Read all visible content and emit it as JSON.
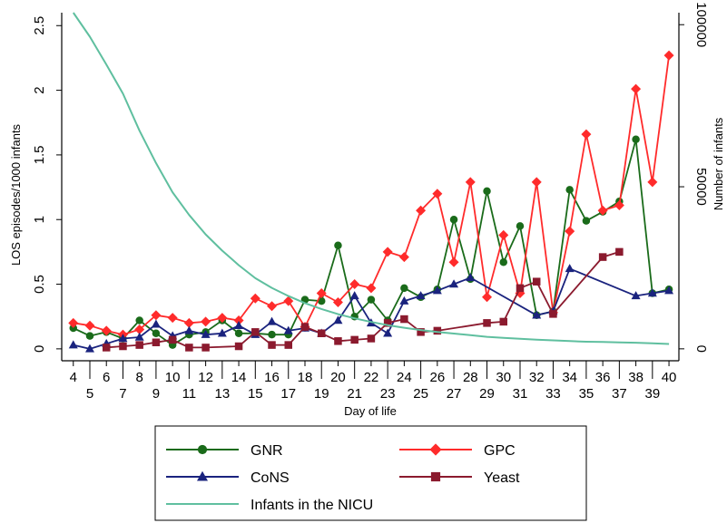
{
  "chart_data": {
    "type": "line",
    "xlabel": "Day of life",
    "ylabel": "LOS episodes/1000 infants",
    "y2label": "Number of infants",
    "x_ticks": [
      4,
      5,
      6,
      7,
      8,
      9,
      10,
      11,
      12,
      13,
      14,
      15,
      16,
      17,
      18,
      19,
      20,
      21,
      22,
      23,
      24,
      25,
      26,
      27,
      28,
      29,
      30,
      31,
      32,
      33,
      34,
      35,
      36,
      37,
      38,
      39,
      40
    ],
    "y_ticks": [
      "0",
      "0.5",
      "1",
      "1.5",
      "2",
      "2.5"
    ],
    "y_tick_values": [
      0,
      0.5,
      1,
      1.5,
      2,
      2.5
    ],
    "y2_ticks": [
      "0",
      "50000",
      "100000"
    ],
    "y2_tick_values": [
      0,
      50000,
      100000
    ],
    "xlim": [
      3.3,
      40.6
    ],
    "ylim": [
      -0.05,
      2.6
    ],
    "y2lim": [
      -2000,
      103700
    ],
    "legend_position": "bottom",
    "series": [
      {
        "name": "GNR",
        "color": "#1a6b1a",
        "marker": "circle",
        "axis": "left",
        "x": [
          4,
          5,
          6,
          7,
          8,
          9,
          10,
          11,
          12,
          13,
          14,
          15,
          16,
          17,
          18,
          19,
          20,
          21,
          22,
          23,
          24,
          25,
          26,
          27,
          28,
          29,
          30,
          31,
          32,
          33,
          34,
          35,
          36,
          37,
          38,
          39,
          40
        ],
        "values": [
          0.16,
          0.1,
          0.13,
          0.08,
          0.22,
          0.12,
          0.03,
          0.11,
          0.13,
          0.22,
          0.12,
          0.12,
          0.11,
          0.11,
          0.38,
          0.37,
          0.8,
          0.25,
          0.38,
          0.22,
          0.47,
          0.4,
          0.46,
          1.0,
          0.54,
          1.22,
          0.67,
          0.95,
          0.26,
          0.29,
          1.23,
          0.99,
          1.06,
          1.14,
          1.62,
          0.43,
          0.46
        ]
      },
      {
        "name": "GPC",
        "color": "#ff2b2b",
        "marker": "diamond",
        "axis": "left",
        "x": [
          4,
          5,
          6,
          7,
          8,
          9,
          10,
          11,
          12,
          13,
          14,
          15,
          16,
          17,
          18,
          19,
          20,
          21,
          22,
          23,
          24,
          25,
          26,
          27,
          28,
          29,
          30,
          31,
          32,
          33,
          34,
          35,
          36,
          37,
          38,
          39,
          40
        ],
        "values": [
          0.2,
          0.18,
          0.14,
          0.11,
          0.15,
          0.26,
          0.24,
          0.2,
          0.21,
          0.24,
          0.22,
          0.39,
          0.33,
          0.37,
          0.17,
          0.43,
          0.36,
          0.5,
          0.47,
          0.75,
          0.71,
          1.07,
          1.2,
          0.67,
          1.29,
          0.4,
          0.88,
          0.43,
          1.29,
          0.28,
          0.91,
          1.66,
          1.07,
          1.11,
          2.01,
          1.29,
          2.27
        ]
      },
      {
        "name": "CoNS",
        "color": "#1a237e",
        "marker": "triangle",
        "axis": "left",
        "x": [
          4,
          5,
          6,
          7,
          8,
          9,
          10,
          11,
          12,
          13,
          14,
          15,
          16,
          17,
          18,
          19,
          20,
          21,
          22,
          23,
          24,
          25,
          26,
          27,
          28,
          32,
          33,
          34,
          38,
          39,
          40
        ],
        "values": [
          0.03,
          0.0,
          0.04,
          0.08,
          0.09,
          0.19,
          0.1,
          0.14,
          0.11,
          0.12,
          0.18,
          0.11,
          0.21,
          0.14,
          0.16,
          0.12,
          0.22,
          0.41,
          0.2,
          0.12,
          0.37,
          0.41,
          0.45,
          0.5,
          0.55,
          0.26,
          0.29,
          0.62,
          0.41,
          0.43,
          0.45
        ]
      },
      {
        "name": "Yeast",
        "color": "#8b1a2e",
        "marker": "square",
        "axis": "left",
        "x": [
          6,
          7,
          8,
          9,
          10,
          11,
          12,
          14,
          15,
          16,
          17,
          18,
          19,
          20,
          21,
          22,
          23,
          24,
          25,
          26,
          29,
          30,
          31,
          32,
          33,
          36,
          37
        ],
        "values": [
          0.01,
          0.02,
          0.03,
          0.05,
          0.07,
          0.01,
          0.01,
          0.02,
          0.13,
          0.03,
          0.03,
          0.17,
          0.12,
          0.06,
          0.07,
          0.08,
          0.2,
          0.23,
          0.13,
          0.14,
          0.2,
          0.21,
          0.47,
          0.52,
          0.27,
          0.71,
          0.75
        ]
      },
      {
        "name": "Infants in the NICU",
        "color": "#5fbf9f",
        "marker": "none",
        "axis": "right",
        "x": [
          4,
          5,
          6,
          7,
          8,
          9,
          10,
          11,
          12,
          13,
          14,
          15,
          16,
          17,
          18,
          19,
          20,
          21,
          22,
          23,
          24,
          25,
          26,
          27,
          28,
          29,
          30,
          31,
          32,
          33,
          34,
          35,
          36,
          37,
          38,
          39,
          40
        ],
        "values": [
          103700,
          96300,
          87700,
          78700,
          67300,
          57300,
          48300,
          41300,
          35300,
          30300,
          25800,
          21800,
          18800,
          16300,
          14100,
          12300,
          10700,
          9400,
          8300,
          7300,
          6500,
          5800,
          5200,
          4700,
          4200,
          3700,
          3400,
          3100,
          2800,
          2600,
          2400,
          2200,
          2100,
          2000,
          1900,
          1700,
          1500
        ]
      }
    ]
  },
  "legend": {
    "items": [
      {
        "label": "GNR",
        "series": 0
      },
      {
        "label": "GPC",
        "series": 1
      },
      {
        "label": "CoNS",
        "series": 2
      },
      {
        "label": "Yeast",
        "series": 3
      },
      {
        "label": "Infants in the NICU",
        "series": 4
      }
    ]
  }
}
